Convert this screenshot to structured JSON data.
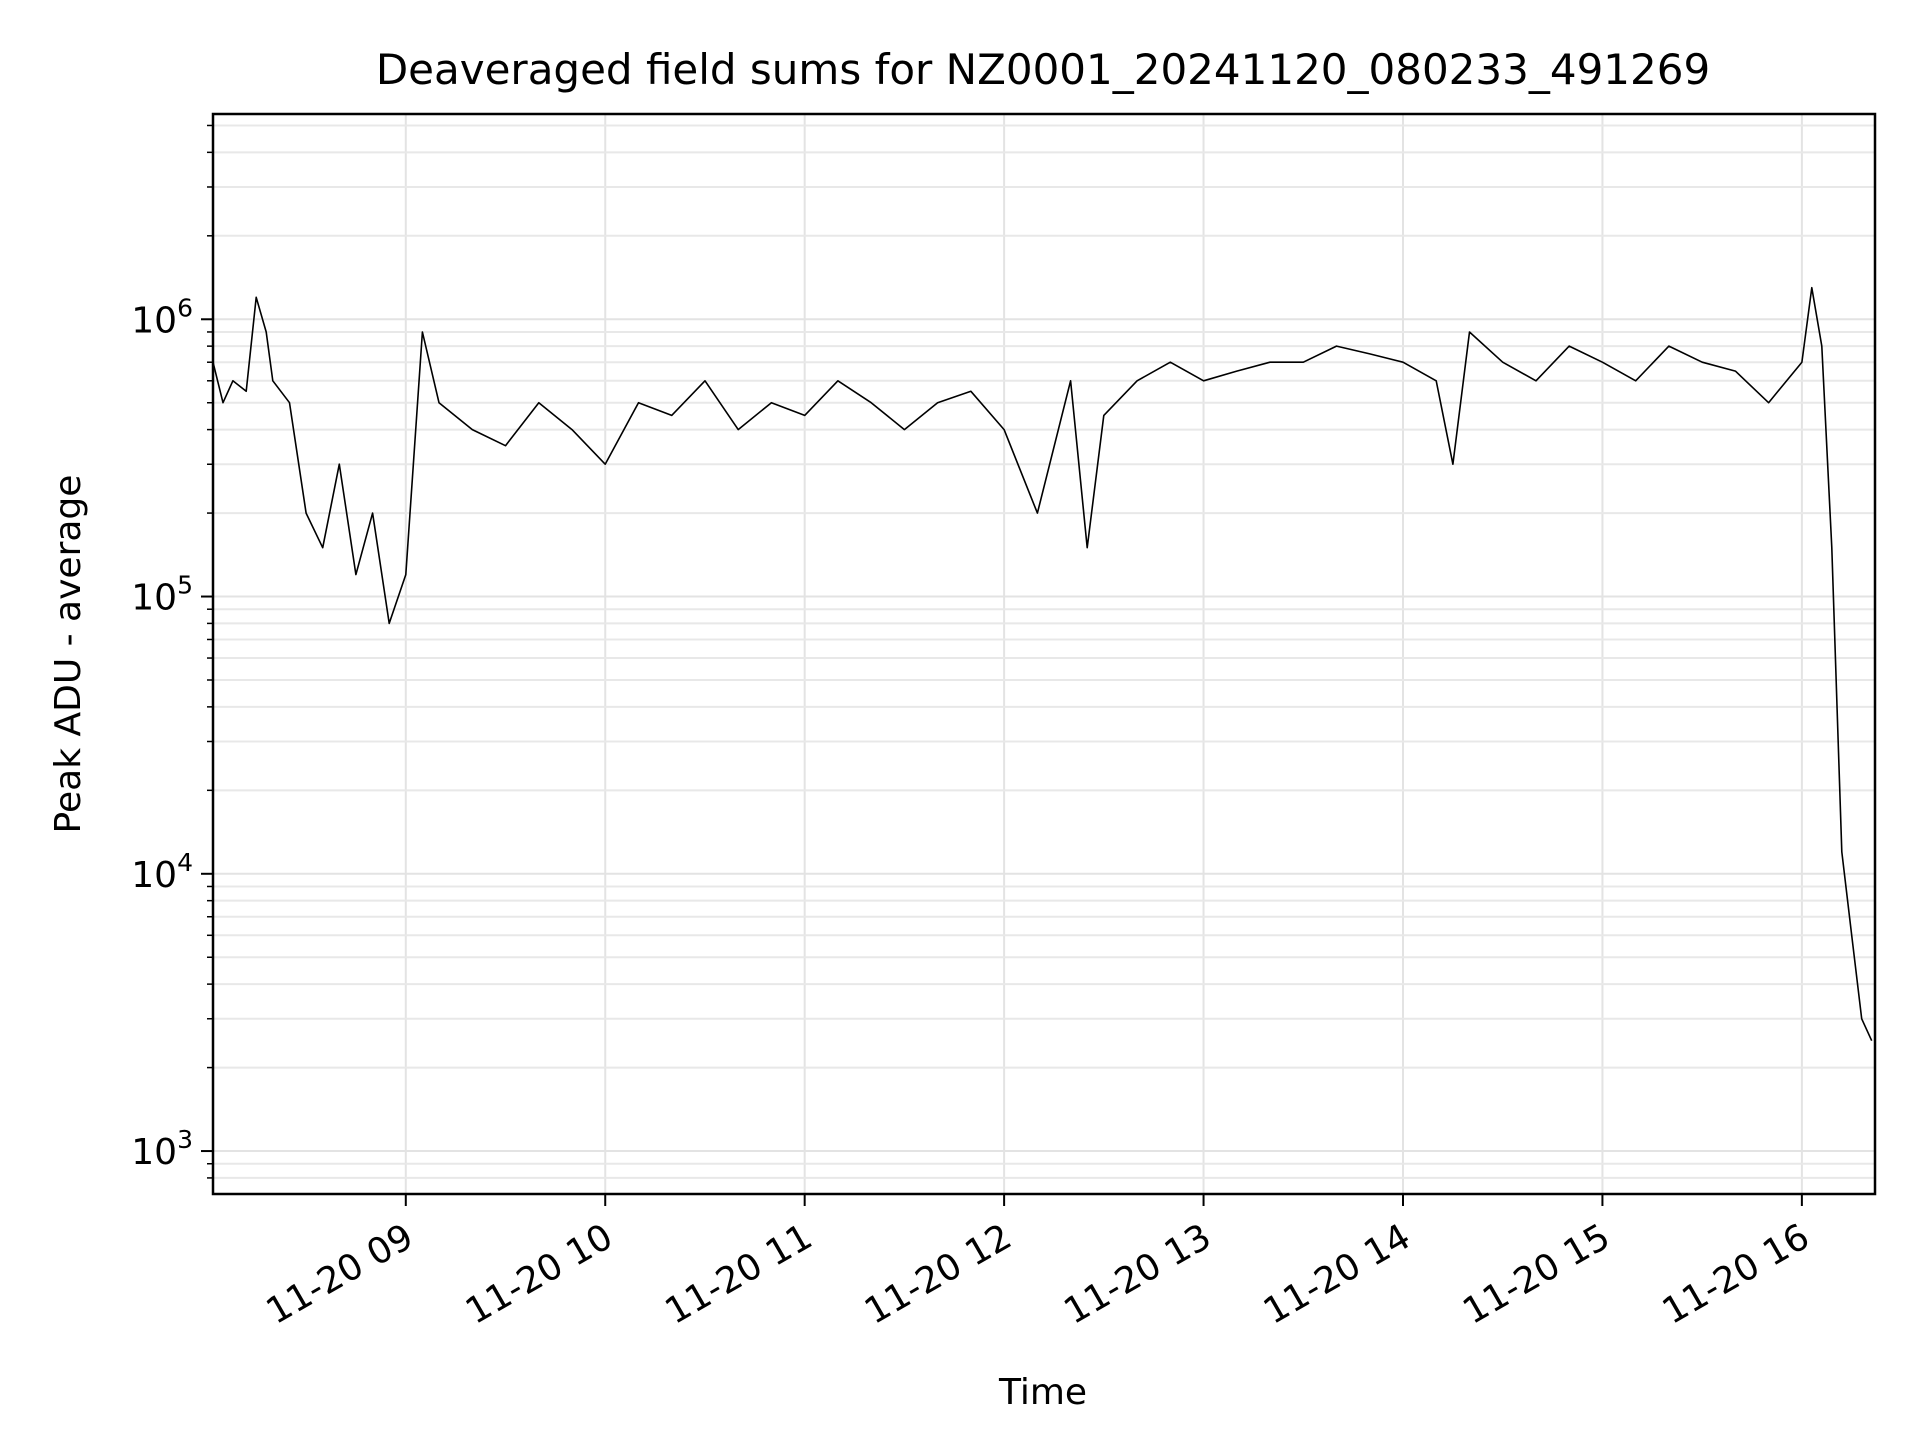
{
  "chart_data": {
    "type": "line",
    "title": "Deaveraged field sums for NZ0001_20241120_080233_491269",
    "xlabel": "Time",
    "ylabel": "Peak ADU - average",
    "yscale": "log",
    "ylim": [
      700,
      5500000
    ],
    "xlim": [
      "2024-11-20 08:02",
      "2024-11-20 16:22"
    ],
    "grid": true,
    "x_ticks": [
      {
        "label": "11-20 09",
        "time": "2024-11-20 09:00"
      },
      {
        "label": "11-20 10",
        "time": "2024-11-20 10:00"
      },
      {
        "label": "11-20 11",
        "time": "2024-11-20 11:00"
      },
      {
        "label": "11-20 12",
        "time": "2024-11-20 12:00"
      },
      {
        "label": "11-20 13",
        "time": "2024-11-20 13:00"
      },
      {
        "label": "11-20 14",
        "time": "2024-11-20 14:00"
      },
      {
        "label": "11-20 15",
        "time": "2024-11-20 15:00"
      },
      {
        "label": "11-20 16",
        "time": "2024-11-20 16:00"
      }
    ],
    "y_ticks": [
      {
        "base": "10",
        "exp": "3",
        "value": 1000
      },
      {
        "base": "10",
        "exp": "4",
        "value": 10000
      },
      {
        "base": "10",
        "exp": "5",
        "value": 100000
      },
      {
        "base": "10",
        "exp": "6",
        "value": 1000000
      }
    ],
    "series": [
      {
        "color": "#000000",
        "x": [
          "2024-11-20 08:02",
          "2024-11-20 08:05",
          "2024-11-20 08:08",
          "2024-11-20 08:12",
          "2024-11-20 08:15",
          "2024-11-20 08:18",
          "2024-11-20 08:20",
          "2024-11-20 08:25",
          "2024-11-20 08:30",
          "2024-11-20 08:35",
          "2024-11-20 08:40",
          "2024-11-20 08:45",
          "2024-11-20 08:50",
          "2024-11-20 08:55",
          "2024-11-20 09:00",
          "2024-11-20 09:05",
          "2024-11-20 09:10",
          "2024-11-20 09:20",
          "2024-11-20 09:30",
          "2024-11-20 09:40",
          "2024-11-20 09:50",
          "2024-11-20 10:00",
          "2024-11-20 10:10",
          "2024-11-20 10:20",
          "2024-11-20 10:30",
          "2024-11-20 10:40",
          "2024-11-20 10:50",
          "2024-11-20 11:00",
          "2024-11-20 11:10",
          "2024-11-20 11:20",
          "2024-11-20 11:30",
          "2024-11-20 11:40",
          "2024-11-20 11:50",
          "2024-11-20 12:00",
          "2024-11-20 12:10",
          "2024-11-20 12:20",
          "2024-11-20 12:25",
          "2024-11-20 12:30",
          "2024-11-20 12:40",
          "2024-11-20 12:50",
          "2024-11-20 13:00",
          "2024-11-20 13:10",
          "2024-11-20 13:20",
          "2024-11-20 13:30",
          "2024-11-20 13:40",
          "2024-11-20 13:50",
          "2024-11-20 14:00",
          "2024-11-20 14:10",
          "2024-11-20 14:15",
          "2024-11-20 14:20",
          "2024-11-20 14:30",
          "2024-11-20 14:40",
          "2024-11-20 14:50",
          "2024-11-20 15:00",
          "2024-11-20 15:10",
          "2024-11-20 15:20",
          "2024-11-20 15:30",
          "2024-11-20 15:40",
          "2024-11-20 15:50",
          "2024-11-20 16:00",
          "2024-11-20 16:03",
          "2024-11-20 16:06",
          "2024-11-20 16:09",
          "2024-11-20 16:12",
          "2024-11-20 16:15",
          "2024-11-20 16:18",
          "2024-11-20 16:21"
        ],
        "y": [
          700000,
          500000,
          600000,
          550000,
          1200000,
          900000,
          600000,
          500000,
          200000,
          150000,
          300000,
          120000,
          200000,
          80000,
          120000,
          900000,
          500000,
          400000,
          350000,
          500000,
          400000,
          300000,
          500000,
          450000,
          600000,
          400000,
          500000,
          450000,
          600000,
          500000,
          400000,
          500000,
          550000,
          400000,
          200000,
          600000,
          150000,
          450000,
          600000,
          700000,
          600000,
          650000,
          700000,
          700000,
          800000,
          750000,
          700000,
          600000,
          300000,
          900000,
          700000,
          600000,
          800000,
          700000,
          600000,
          800000,
          700000,
          650000,
          500000,
          700000,
          1300000,
          800000,
          150000,
          12000,
          6000,
          3000,
          2500
        ]
      }
    ]
  }
}
